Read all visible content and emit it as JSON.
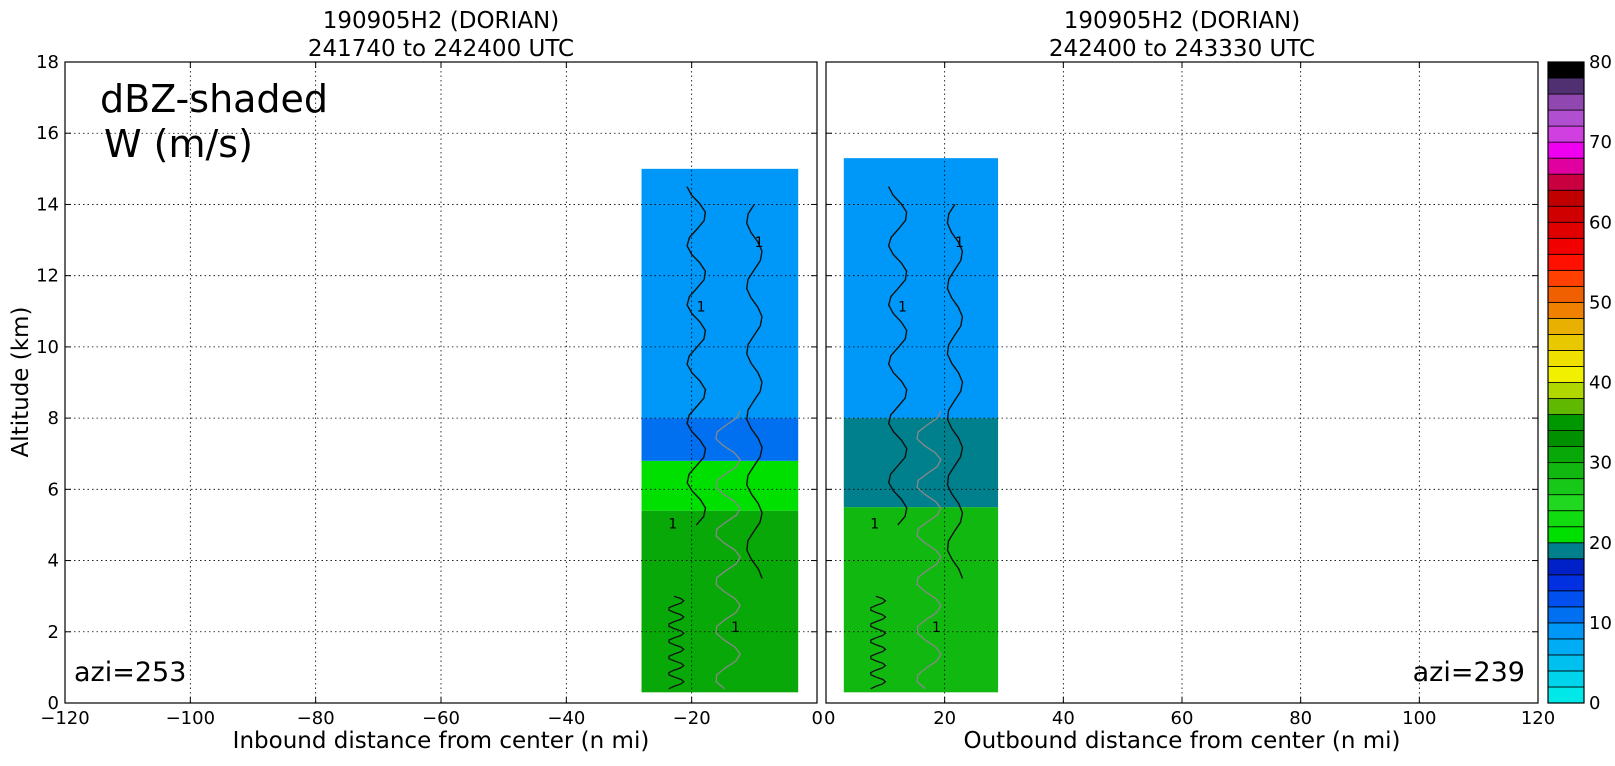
{
  "chart_data": [
    {
      "type": "heatmap",
      "panel": "left",
      "title": [
        "190905H2 (DORIAN)",
        "241740 to 242400 UTC"
      ],
      "xlabel": "Inbound distance from center (n mi)",
      "ylabel": "Altitude (km)",
      "xlim": [
        -120,
        0
      ],
      "ylim": [
        0,
        18
      ],
      "xticks": [
        -120,
        -100,
        -80,
        -60,
        -40,
        -20,
        0
      ],
      "yticks": [
        0,
        2,
        4,
        6,
        8,
        10,
        12,
        14,
        16,
        18
      ],
      "grid": true,
      "annotations": [
        "dBZ-shaded",
        "W (m/s)",
        "azi=253"
      ],
      "contour_label": "1",
      "data_extent_x": [
        -28,
        -3
      ],
      "data_extent_z": [
        0.3,
        15
      ],
      "reflectivity_profile": [
        {
          "z": [
            0.3,
            5.4
          ],
          "dbz": 38
        },
        {
          "z": [
            5.4,
            6.8
          ],
          "dbz": 26
        },
        {
          "z": [
            6.8,
            8.0
          ],
          "dbz": 14
        },
        {
          "z": [
            8.0,
            15.0
          ],
          "dbz": 10
        }
      ]
    },
    {
      "type": "heatmap",
      "panel": "right",
      "title": [
        "190905H2 (DORIAN)",
        "242400 to 243330 UTC"
      ],
      "xlabel": "Outbound distance from center (n mi)",
      "xlim": [
        0,
        120
      ],
      "ylim": [
        0,
        18
      ],
      "xticks": [
        0,
        20,
        40,
        60,
        80,
        100,
        120
      ],
      "yticks": [
        0,
        2,
        4,
        6,
        8,
        10,
        12,
        14,
        16,
        18
      ],
      "grid": true,
      "annotations": [
        "azi=239"
      ],
      "contour_label": "1",
      "data_extent_x": [
        3,
        29
      ],
      "data_extent_z": [
        0.3,
        15.3
      ],
      "reflectivity_profile": [
        {
          "z": [
            0.3,
            5.5
          ],
          "dbz": 35
        },
        {
          "z": [
            5.5,
            8.0
          ],
          "dbz": 24
        },
        {
          "z": [
            8.0,
            15.3
          ],
          "dbz": 10
        }
      ]
    }
  ],
  "colorbar": {
    "ticks": [
      0,
      10,
      20,
      30,
      40,
      50,
      60,
      70,
      80
    ],
    "range": [
      0,
      80
    ],
    "step": 2.5,
    "colors": [
      "#00e8e8",
      "#00d4ec",
      "#00c0f0",
      "#00acf4",
      "#0098f8",
      "#0070f0",
      "#0050f0",
      "#0030e0",
      "#0020c8",
      "#00808c",
      "#00e000",
      "#10dc10",
      "#20d820",
      "#18c818",
      "#10b810",
      "#08a808",
      "#009000",
      "#009800",
      "#60b800",
      "#b0d800",
      "#f0f000",
      "#f0e000",
      "#e8c800",
      "#e8b000",
      "#f08000",
      "#f06000",
      "#ff4000",
      "#ff1000",
      "#f00000",
      "#e00000",
      "#d00000",
      "#c00000",
      "#c80040",
      "#e000a0",
      "#f000f0",
      "#d040e0",
      "#b050d0",
      "#9048b0",
      "#503070",
      "#000000"
    ]
  }
}
